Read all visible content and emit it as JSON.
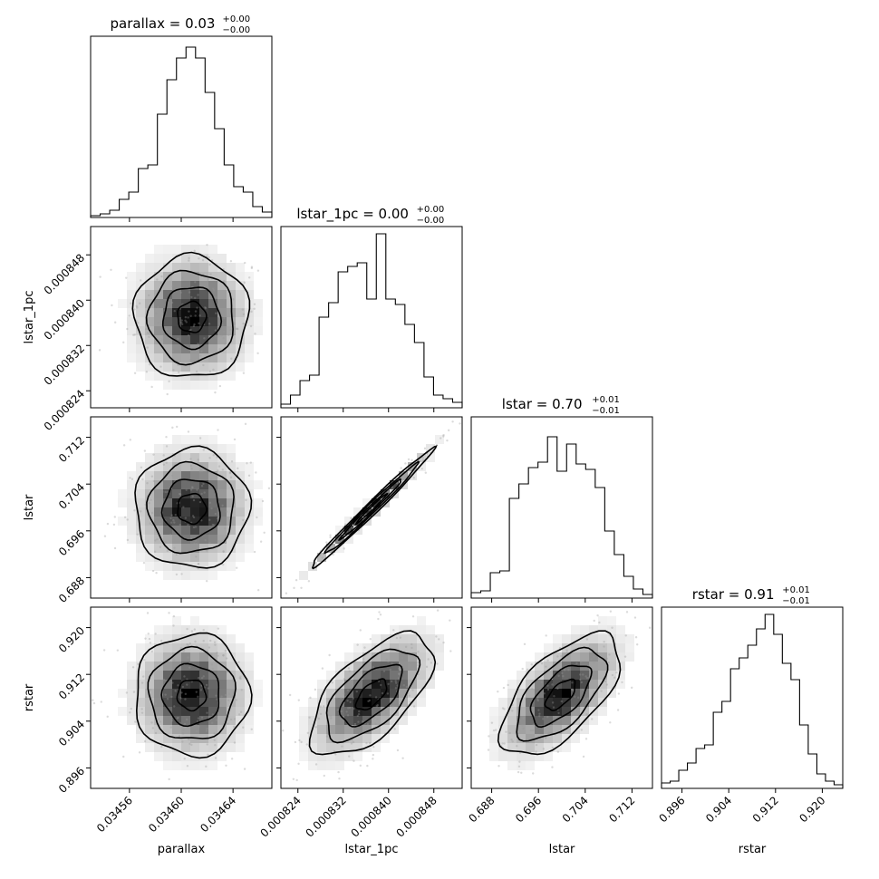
{
  "chart_data": {
    "type": "corner",
    "parameters": [
      "parallax",
      "lstar_1pc",
      "lstar",
      "rstar"
    ],
    "titles": [
      {
        "param": "parallax",
        "base": "parallax = 0.03",
        "sup": "+0.00",
        "sub": "−0.00"
      },
      {
        "param": "lstar_1pc",
        "base": "lstar_1pc = 0.00",
        "sup": "+0.00",
        "sub": "−0.00"
      },
      {
        "param": "lstar",
        "base": "lstar = 0.70",
        "sup": "+0.01",
        "sub": "−0.01"
      },
      {
        "param": "rstar",
        "base": "rstar = 0.91",
        "sup": "+0.01",
        "sub": "−0.01"
      }
    ],
    "axis_labels": {
      "x": [
        "parallax",
        "lstar_1pc",
        "lstar",
        "rstar"
      ],
      "y": [
        "lstar_1pc",
        "lstar",
        "rstar"
      ]
    },
    "ranges": [
      [
        0.03453,
        0.03467
      ],
      [
        0.000821,
        0.000853
      ],
      [
        0.6845,
        0.7155
      ],
      [
        0.8925,
        0.9235
      ]
    ],
    "ticks": [
      {
        "values": [
          0.03456,
          0.0346,
          0.03464
        ],
        "labels": [
          "0.03456",
          "0.03460",
          "0.03464"
        ]
      },
      {
        "values": [
          0.000824,
          0.000832,
          0.00084,
          0.000848
        ],
        "labels": [
          "0.000824",
          "0.000832",
          "0.000840",
          "0.000848"
        ]
      },
      {
        "values": [
          0.688,
          0.696,
          0.704,
          0.712
        ],
        "labels": [
          "0.688",
          "0.696",
          "0.704",
          "0.712"
        ]
      },
      {
        "values": [
          0.896,
          0.904,
          0.912,
          0.92
        ],
        "labels": [
          "0.896",
          "0.904",
          "0.912",
          "0.920"
        ]
      }
    ],
    "histograms": [
      [
        0.01,
        0.02,
        0.04,
        0.1,
        0.14,
        0.27,
        0.29,
        0.57,
        0.76,
        0.88,
        0.94,
        0.88,
        0.69,
        0.49,
        0.29,
        0.17,
        0.14,
        0.06,
        0.03
      ],
      [
        0.02,
        0.07,
        0.15,
        0.18,
        0.5,
        0.58,
        0.75,
        0.78,
        0.8,
        0.6,
        0.96,
        0.6,
        0.57,
        0.46,
        0.36,
        0.17,
        0.07,
        0.05,
        0.03
      ],
      [
        0.03,
        0.04,
        0.14,
        0.15,
        0.55,
        0.63,
        0.72,
        0.75,
        0.89,
        0.7,
        0.85,
        0.74,
        0.71,
        0.61,
        0.37,
        0.24,
        0.12,
        0.05,
        0.02
      ],
      [
        0.03,
        0.04,
        0.1,
        0.14,
        0.22,
        0.24,
        0.42,
        0.48,
        0.66,
        0.72,
        0.79,
        0.88,
        0.96,
        0.85,
        0.69,
        0.6,
        0.35,
        0.19,
        0.08,
        0.04,
        0.02
      ]
    ],
    "histogram_ylim": [
      0,
      1
    ],
    "posterior_gaussian": {
      "means": [
        0.034608,
        0.000837,
        0.6998,
        0.9085
      ],
      "sigmas": [
        2.2e-05,
        5.4e-06,
        0.0051,
        0.0052
      ],
      "correlations": [
        {
          "pair": [
            "lstar_1pc",
            "parallax"
          ],
          "rho": 0.0
        },
        {
          "pair": [
            "lstar",
            "parallax"
          ],
          "rho": 0.0
        },
        {
          "pair": [
            "lstar",
            "lstar_1pc"
          ],
          "rho": 0.99
        },
        {
          "pair": [
            "rstar",
            "parallax"
          ],
          "rho": 0.0
        },
        {
          "pair": [
            "rstar",
            "lstar_1pc"
          ],
          "rho": 0.62
        },
        {
          "pair": [
            "rstar",
            "lstar"
          ],
          "rho": 0.62
        }
      ]
    },
    "contour_levels_sigma": [
      0.5,
      1.0,
      1.5,
      2.0
    ],
    "grid": false,
    "legend": "none",
    "colors": {
      "line": "#000000",
      "density": "#000000",
      "background": "#ffffff"
    }
  }
}
